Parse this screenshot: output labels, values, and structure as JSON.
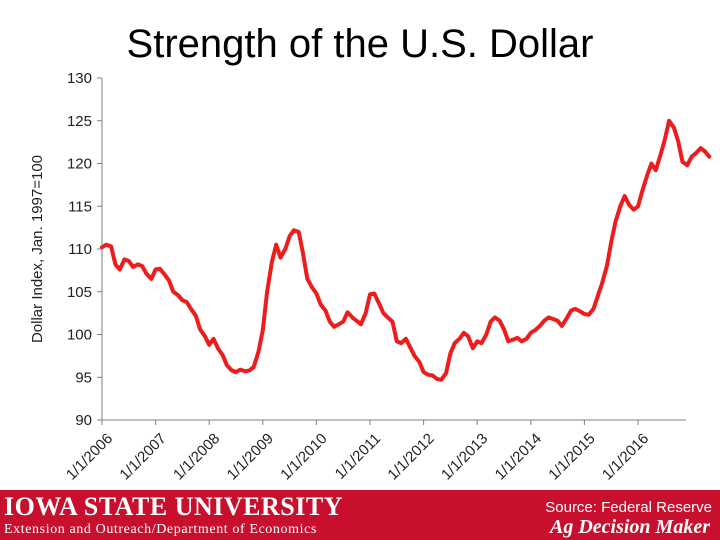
{
  "chart_data": {
    "type": "line",
    "title": "Strength of the U.S. Dollar",
    "ylabel": "Dollar Index, Jan. 1997=100",
    "xlabel": "",
    "ylim": [
      90,
      130
    ],
    "yticks": [
      90,
      95,
      100,
      105,
      110,
      115,
      120,
      125,
      130
    ],
    "xlim": [
      2006,
      2016.9
    ],
    "xticks": [
      {
        "x": 2006,
        "label": "1/1/2006"
      },
      {
        "x": 2007,
        "label": "1/1/2007"
      },
      {
        "x": 2008,
        "label": "1/1/2008"
      },
      {
        "x": 2009,
        "label": "1/1/2009"
      },
      {
        "x": 2010,
        "label": "1/1/2010"
      },
      {
        "x": 2011,
        "label": "1/1/2011"
      },
      {
        "x": 2012,
        "label": "1/1/2012"
      },
      {
        "x": 2013,
        "label": "1/1/2013"
      },
      {
        "x": 2014,
        "label": "1/1/2014"
      },
      {
        "x": 2015,
        "label": "1/1/2015"
      },
      {
        "x": 2016,
        "label": "1/1/2016"
      }
    ],
    "line_color": "#ee1c1c",
    "grid": false,
    "series": [
      {
        "name": "",
        "points": [
          [
            2006.0,
            110.2
          ],
          [
            2006.08,
            110.5
          ],
          [
            2006.17,
            110.3
          ],
          [
            2006.25,
            108.2
          ],
          [
            2006.33,
            107.6
          ],
          [
            2006.42,
            108.8
          ],
          [
            2006.5,
            108.6
          ],
          [
            2006.58,
            107.9
          ],
          [
            2006.67,
            108.2
          ],
          [
            2006.75,
            108.0
          ],
          [
            2006.83,
            107.1
          ],
          [
            2006.92,
            106.5
          ],
          [
            2007.0,
            107.6
          ],
          [
            2007.08,
            107.7
          ],
          [
            2007.17,
            107.0
          ],
          [
            2007.25,
            106.3
          ],
          [
            2007.33,
            105.0
          ],
          [
            2007.42,
            104.6
          ],
          [
            2007.5,
            104.0
          ],
          [
            2007.58,
            103.8
          ],
          [
            2007.67,
            102.9
          ],
          [
            2007.75,
            102.2
          ],
          [
            2007.83,
            100.6
          ],
          [
            2007.92,
            99.8
          ],
          [
            2008.0,
            98.8
          ],
          [
            2008.08,
            99.5
          ],
          [
            2008.17,
            98.3
          ],
          [
            2008.25,
            97.6
          ],
          [
            2008.33,
            96.4
          ],
          [
            2008.42,
            95.8
          ],
          [
            2008.5,
            95.6
          ],
          [
            2008.58,
            95.9
          ],
          [
            2008.67,
            95.7
          ],
          [
            2008.75,
            95.8
          ],
          [
            2008.83,
            96.2
          ],
          [
            2008.92,
            98.0
          ],
          [
            2009.0,
            100.5
          ],
          [
            2009.08,
            105.0
          ],
          [
            2009.17,
            108.5
          ],
          [
            2009.25,
            110.5
          ],
          [
            2009.33,
            109.0
          ],
          [
            2009.42,
            110.0
          ],
          [
            2009.5,
            111.5
          ],
          [
            2009.58,
            112.2
          ],
          [
            2009.67,
            112.0
          ],
          [
            2009.75,
            109.5
          ],
          [
            2009.83,
            106.5
          ],
          [
            2009.92,
            105.5
          ],
          [
            2010.0,
            104.8
          ],
          [
            2010.08,
            103.5
          ],
          [
            2010.17,
            102.8
          ],
          [
            2010.25,
            101.5
          ],
          [
            2010.33,
            100.9
          ],
          [
            2010.42,
            101.2
          ],
          [
            2010.5,
            101.5
          ],
          [
            2010.58,
            102.6
          ],
          [
            2010.67,
            102.0
          ],
          [
            2010.75,
            101.6
          ],
          [
            2010.83,
            101.2
          ],
          [
            2010.92,
            102.5
          ],
          [
            2011.0,
            104.7
          ],
          [
            2011.08,
            104.8
          ],
          [
            2011.17,
            103.6
          ],
          [
            2011.25,
            102.5
          ],
          [
            2011.33,
            102.0
          ],
          [
            2011.42,
            101.5
          ],
          [
            2011.5,
            99.2
          ],
          [
            2011.58,
            99.0
          ],
          [
            2011.67,
            99.5
          ],
          [
            2011.75,
            98.5
          ],
          [
            2011.83,
            97.5
          ],
          [
            2011.92,
            96.8
          ],
          [
            2012.0,
            95.6
          ],
          [
            2012.08,
            95.3
          ],
          [
            2012.17,
            95.2
          ],
          [
            2012.25,
            94.8
          ],
          [
            2012.33,
            94.7
          ],
          [
            2012.42,
            95.5
          ],
          [
            2012.5,
            97.8
          ],
          [
            2012.58,
            99.0
          ],
          [
            2012.67,
            99.5
          ],
          [
            2012.75,
            100.2
          ],
          [
            2012.83,
            99.8
          ],
          [
            2012.92,
            98.4
          ],
          [
            2013.0,
            99.2
          ],
          [
            2013.08,
            99.0
          ],
          [
            2013.17,
            100.0
          ],
          [
            2013.25,
            101.5
          ],
          [
            2013.33,
            102.0
          ],
          [
            2013.42,
            101.6
          ],
          [
            2013.5,
            100.6
          ],
          [
            2013.58,
            99.2
          ],
          [
            2013.67,
            99.4
          ],
          [
            2013.75,
            99.6
          ],
          [
            2013.83,
            99.2
          ],
          [
            2013.92,
            99.5
          ],
          [
            2014.0,
            100.2
          ],
          [
            2014.08,
            100.5
          ],
          [
            2014.17,
            101.0
          ],
          [
            2014.25,
            101.6
          ],
          [
            2014.33,
            102.0
          ],
          [
            2014.42,
            101.8
          ],
          [
            2014.5,
            101.6
          ],
          [
            2014.58,
            101.0
          ],
          [
            2014.67,
            101.9
          ],
          [
            2014.75,
            102.8
          ],
          [
            2014.83,
            103.0
          ],
          [
            2014.92,
            102.7
          ],
          [
            2015.0,
            102.4
          ],
          [
            2015.08,
            102.3
          ],
          [
            2015.17,
            103.0
          ],
          [
            2015.25,
            104.5
          ],
          [
            2015.33,
            106.0
          ],
          [
            2015.42,
            108.0
          ],
          [
            2015.5,
            110.8
          ],
          [
            2015.58,
            113.2
          ],
          [
            2015.67,
            115.0
          ],
          [
            2015.75,
            116.2
          ],
          [
            2015.83,
            115.2
          ],
          [
            2015.92,
            114.6
          ],
          [
            2016.0,
            115.0
          ],
          [
            2016.08,
            116.8
          ],
          [
            2016.17,
            118.6
          ],
          [
            2016.25,
            120.0
          ],
          [
            2016.33,
            119.2
          ],
          [
            2016.42,
            121.0
          ],
          [
            2016.5,
            122.8
          ],
          [
            2016.58,
            125.0
          ],
          [
            2016.67,
            124.2
          ],
          [
            2016.75,
            122.6
          ],
          [
            2016.83,
            120.2
          ],
          [
            2016.92,
            119.8
          ],
          [
            2017.0,
            120.8
          ],
          [
            2017.08,
            121.2
          ],
          [
            2017.17,
            121.8
          ],
          [
            2017.25,
            121.4
          ],
          [
            2017.33,
            120.8
          ]
        ]
      }
    ]
  },
  "footer": {
    "university": "IOWA STATE UNIVERSITY",
    "department": "Extension and Outreach/Department of Economics",
    "source": "Source: Federal Reserve",
    "program": "Ag Decision Maker"
  },
  "colors": {
    "footer_bg": "#c8102e",
    "line": "#ee1c1c",
    "axis": "#808080"
  }
}
